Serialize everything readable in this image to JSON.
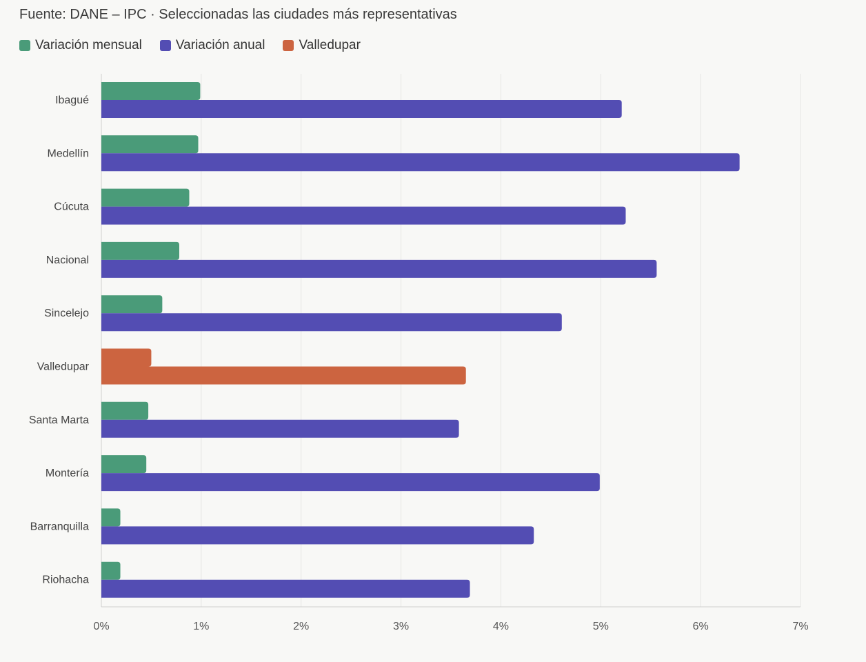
{
  "chart_data": {
    "type": "bar",
    "orientation": "horizontal",
    "title": "Fuente: DANE – IPC · Seleccionadas las ciudades más representativas",
    "xlabel": "",
    "ylabel": "",
    "xlim": [
      0,
      7
    ],
    "x_ticks": [
      "0%",
      "1%",
      "2%",
      "3%",
      "4%",
      "5%",
      "6%",
      "7%"
    ],
    "grid": true,
    "legend_position": "top-left",
    "legend": [
      {
        "label": "Variación mensual",
        "color": "#4a9b79"
      },
      {
        "label": "Variación anual",
        "color": "#534db3"
      },
      {
        "label": "Valledupar",
        "color": "#cc6440"
      }
    ],
    "highlight_category": "Valledupar",
    "categories": [
      "Ibagué",
      "Medellín",
      "Cúcuta",
      "Nacional",
      "Sincelejo",
      "Valledupar",
      "Santa Marta",
      "Montería",
      "Barranquilla",
      "Riohacha"
    ],
    "series": [
      {
        "name": "Variación mensual",
        "values": [
          0.99,
          0.97,
          0.88,
          0.78,
          0.61,
          0.5,
          0.47,
          0.45,
          0.19,
          0.19
        ]
      },
      {
        "name": "Variación anual",
        "values": [
          5.21,
          6.39,
          5.25,
          5.56,
          4.61,
          3.65,
          3.58,
          4.99,
          4.33,
          3.69
        ]
      }
    ]
  }
}
